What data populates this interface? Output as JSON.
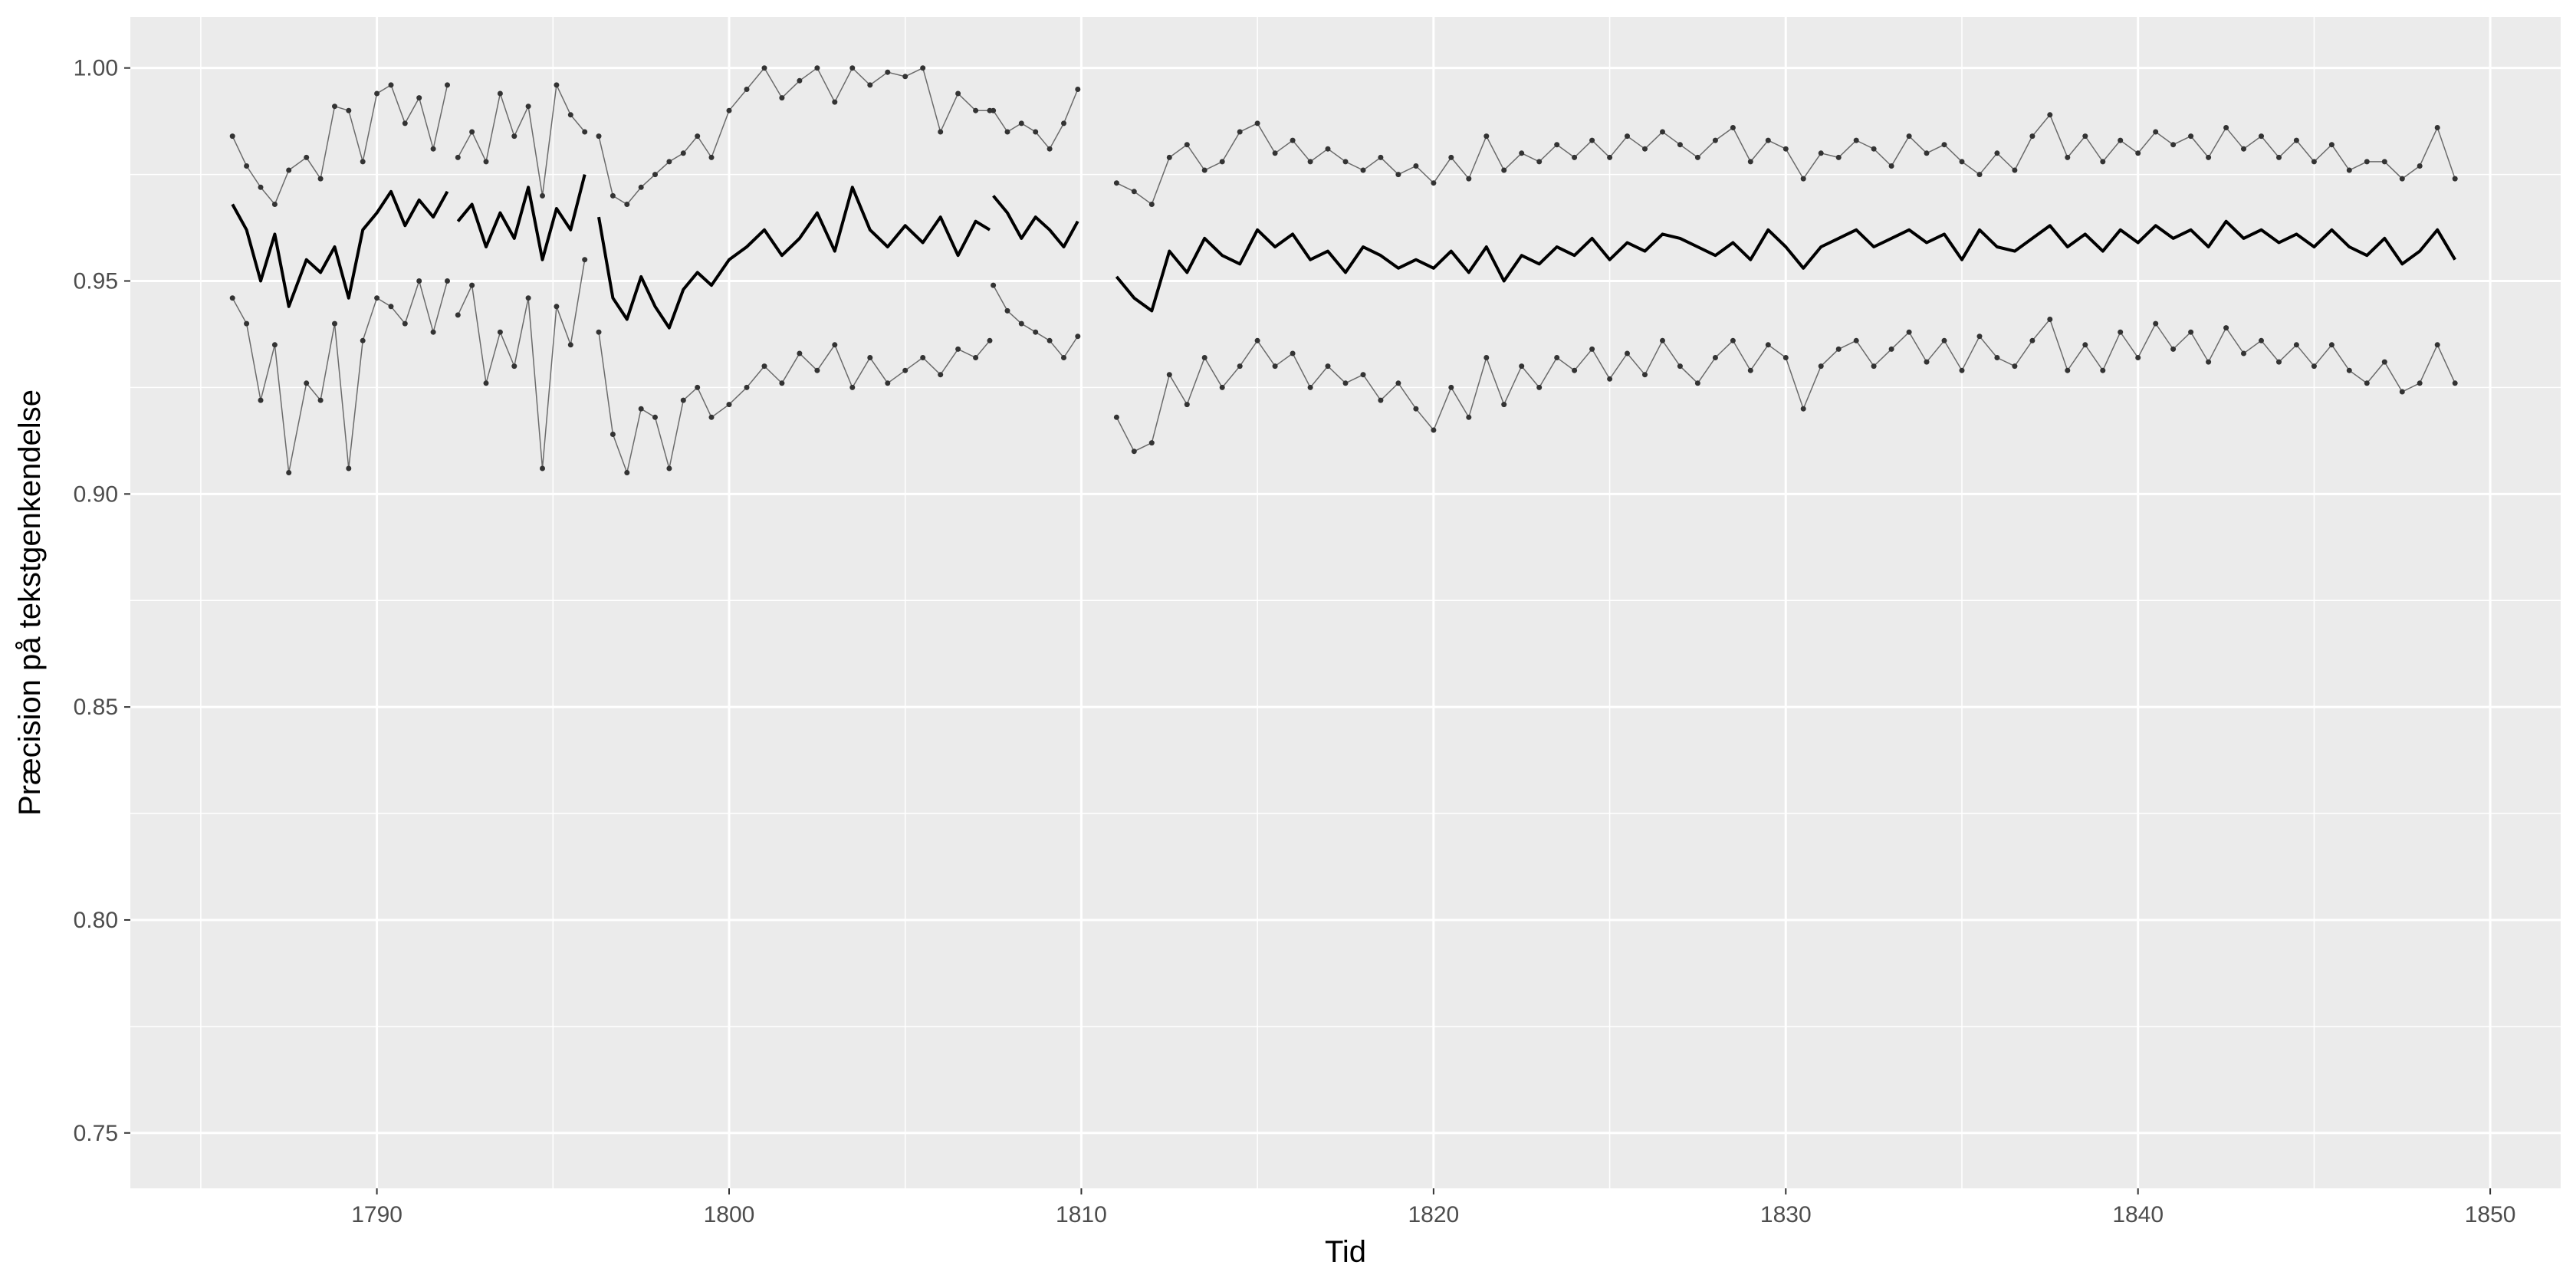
{
  "chart_data": {
    "type": "line",
    "title": "",
    "xlabel": "Tid",
    "ylabel": "Præcision på tekstgenkendelse",
    "xlim": [
      1783,
      1852
    ],
    "ylim": [
      0.737,
      1.012
    ],
    "x_ticks": [
      1790,
      1800,
      1810,
      1820,
      1830,
      1840,
      1850
    ],
    "y_ticks": [
      0.75,
      0.8,
      0.85,
      0.9,
      0.95,
      1.0
    ],
    "x_tick_labels": [
      "1790",
      "1800",
      "1810",
      "1820",
      "1830",
      "1840",
      "1850"
    ],
    "y_tick_labels": [
      "0.75",
      "0.80",
      "0.85",
      "0.90",
      "0.95",
      "1.00"
    ],
    "grid": true,
    "panel_background": "#ebebeb",
    "series": [
      {
        "role": "mean",
        "style": "line",
        "color": "#000000",
        "segments": [
          {
            "x": [
              1785.9,
              1786.3,
              1786.7,
              1787.1,
              1787.5,
              1788.0,
              1788.4,
              1788.8,
              1789.2,
              1789.6,
              1790.0,
              1790.4,
              1790.8,
              1791.2,
              1791.6,
              1792.0
            ],
            "y": [
              0.968,
              0.962,
              0.95,
              0.961,
              0.944,
              0.955,
              0.952,
              0.958,
              0.946,
              0.962,
              0.966,
              0.971,
              0.963,
              0.969,
              0.965,
              0.971
            ]
          },
          {
            "x": [
              1792.3,
              1792.7,
              1793.1,
              1793.5,
              1793.9,
              1794.3,
              1794.7,
              1795.1,
              1795.5,
              1795.9
            ],
            "y": [
              0.964,
              0.968,
              0.958,
              0.966,
              0.96,
              0.972,
              0.955,
              0.967,
              0.962,
              0.975
            ]
          },
          {
            "x": [
              1796.3,
              1796.7,
              1797.1,
              1797.5,
              1797.9,
              1798.3,
              1798.7,
              1799.1,
              1799.5,
              1800.0,
              1800.5,
              1801.0,
              1801.5,
              1802.0,
              1802.5,
              1803.0,
              1803.5,
              1804.0,
              1804.5,
              1805.0,
              1805.5,
              1806.0,
              1806.5,
              1807.0,
              1807.4
            ],
            "y": [
              0.965,
              0.946,
              0.941,
              0.951,
              0.944,
              0.939,
              0.948,
              0.952,
              0.949,
              0.955,
              0.958,
              0.962,
              0.956,
              0.96,
              0.966,
              0.957,
              0.972,
              0.962,
              0.958,
              0.963,
              0.959,
              0.965,
              0.956,
              0.964,
              0.962
            ]
          },
          {
            "x": [
              1807.5,
              1807.9,
              1808.3,
              1808.7,
              1809.1,
              1809.5,
              1809.9
            ],
            "y": [
              0.97,
              0.966,
              0.96,
              0.965,
              0.962,
              0.958,
              0.964
            ]
          },
          {
            "x": [
              1811.0,
              1811.5,
              1812.0,
              1812.5,
              1813.0,
              1813.5,
              1814.0,
              1814.5,
              1815.0,
              1815.5,
              1816.0,
              1816.5,
              1817.0,
              1817.5,
              1818.0,
              1818.5,
              1819.0,
              1819.5,
              1820.0,
              1820.5,
              1821.0,
              1821.5,
              1822.0,
              1822.5,
              1823.0,
              1823.5,
              1824.0,
              1824.5,
              1825.0,
              1825.5,
              1826.0,
              1826.5,
              1827.0,
              1827.5,
              1828.0,
              1828.5,
              1829.0,
              1829.5,
              1830.0,
              1830.5,
              1831.0,
              1831.5,
              1832.0,
              1832.5,
              1833.0,
              1833.5,
              1834.0,
              1834.5,
              1835.0,
              1835.5,
              1836.0,
              1836.5,
              1837.0,
              1837.5,
              1838.0,
              1838.5,
              1839.0,
              1839.5,
              1840.0,
              1840.5,
              1841.0,
              1841.5,
              1842.0,
              1842.5,
              1843.0,
              1843.5,
              1844.0,
              1844.5,
              1845.0,
              1845.5,
              1846.0,
              1846.5,
              1847.0,
              1847.5,
              1848.0,
              1848.5,
              1849.0
            ],
            "y": [
              0.951,
              0.946,
              0.943,
              0.957,
              0.952,
              0.96,
              0.956,
              0.954,
              0.962,
              0.958,
              0.961,
              0.955,
              0.957,
              0.952,
              0.958,
              0.956,
              0.953,
              0.955,
              0.953,
              0.957,
              0.952,
              0.958,
              0.95,
              0.956,
              0.954,
              0.958,
              0.956,
              0.96,
              0.955,
              0.959,
              0.957,
              0.961,
              0.96,
              0.958,
              0.956,
              0.959,
              0.955,
              0.962,
              0.958,
              0.953,
              0.958,
              0.96,
              0.962,
              0.958,
              0.96,
              0.962,
              0.959,
              0.961,
              0.955,
              0.962,
              0.958,
              0.957,
              0.96,
              0.963,
              0.958,
              0.961,
              0.957,
              0.962,
              0.959,
              0.963,
              0.96,
              0.962,
              0.958,
              0.964,
              0.96,
              0.962,
              0.959,
              0.961,
              0.958,
              0.962,
              0.958,
              0.956,
              0.96,
              0.954,
              0.957,
              0.962,
              0.955
            ]
          }
        ]
      },
      {
        "role": "upper",
        "style": "line+points",
        "color": "#555555",
        "segments": [
          {
            "x": [
              1785.9,
              1786.3,
              1786.7,
              1787.1,
              1787.5,
              1788.0,
              1788.4,
              1788.8,
              1789.2,
              1789.6,
              1790.0,
              1790.4,
              1790.8,
              1791.2,
              1791.6,
              1792.0
            ],
            "y": [
              0.984,
              0.977,
              0.972,
              0.968,
              0.976,
              0.979,
              0.974,
              0.991,
              0.99,
              0.978,
              0.994,
              0.996,
              0.987,
              0.993,
              0.981,
              0.996
            ]
          },
          {
            "x": [
              1792.3,
              1792.7,
              1793.1,
              1793.5,
              1793.9,
              1794.3,
              1794.7,
              1795.1,
              1795.5,
              1795.9
            ],
            "y": [
              0.979,
              0.985,
              0.978,
              0.994,
              0.984,
              0.991,
              0.97,
              0.996,
              0.989,
              0.985
            ]
          },
          {
            "x": [
              1796.3,
              1796.7,
              1797.1,
              1797.5,
              1797.9,
              1798.3,
              1798.7,
              1799.1,
              1799.5,
              1800.0,
              1800.5,
              1801.0,
              1801.5,
              1802.0,
              1802.5,
              1803.0,
              1803.5,
              1804.0,
              1804.5,
              1805.0,
              1805.5,
              1806.0,
              1806.5,
              1807.0,
              1807.4
            ],
            "y": [
              0.984,
              0.97,
              0.968,
              0.972,
              0.975,
              0.978,
              0.98,
              0.984,
              0.979,
              0.99,
              0.995,
              1.0,
              0.993,
              0.997,
              1.0,
              0.992,
              1.0,
              0.996,
              0.999,
              0.998,
              1.0,
              0.985,
              0.994,
              0.99,
              0.99
            ]
          },
          {
            "x": [
              1807.5,
              1807.9,
              1808.3,
              1808.7,
              1809.1,
              1809.5,
              1809.9
            ],
            "y": [
              0.99,
              0.985,
              0.987,
              0.985,
              0.981,
              0.987,
              0.995
            ]
          },
          {
            "x": [
              1811.0,
              1811.5,
              1812.0,
              1812.5,
              1813.0,
              1813.5,
              1814.0,
              1814.5,
              1815.0,
              1815.5,
              1816.0,
              1816.5,
              1817.0,
              1817.5,
              1818.0,
              1818.5,
              1819.0,
              1819.5,
              1820.0,
              1820.5,
              1821.0,
              1821.5,
              1822.0,
              1822.5,
              1823.0,
              1823.5,
              1824.0,
              1824.5,
              1825.0,
              1825.5,
              1826.0,
              1826.5,
              1827.0,
              1827.5,
              1828.0,
              1828.5,
              1829.0,
              1829.5,
              1830.0,
              1830.5,
              1831.0,
              1831.5,
              1832.0,
              1832.5,
              1833.0,
              1833.5,
              1834.0,
              1834.5,
              1835.0,
              1835.5,
              1836.0,
              1836.5,
              1837.0,
              1837.5,
              1838.0,
              1838.5,
              1839.0,
              1839.5,
              1840.0,
              1840.5,
              1841.0,
              1841.5,
              1842.0,
              1842.5,
              1843.0,
              1843.5,
              1844.0,
              1844.5,
              1845.0,
              1845.5,
              1846.0,
              1846.5,
              1847.0,
              1847.5,
              1848.0,
              1848.5,
              1849.0
            ],
            "y": [
              0.973,
              0.971,
              0.968,
              0.979,
              0.982,
              0.976,
              0.978,
              0.985,
              0.987,
              0.98,
              0.983,
              0.978,
              0.981,
              0.978,
              0.976,
              0.979,
              0.975,
              0.977,
              0.973,
              0.979,
              0.974,
              0.984,
              0.976,
              0.98,
              0.978,
              0.982,
              0.979,
              0.983,
              0.979,
              0.984,
              0.981,
              0.985,
              0.982,
              0.979,
              0.983,
              0.986,
              0.978,
              0.983,
              0.981,
              0.974,
              0.98,
              0.979,
              0.983,
              0.981,
              0.977,
              0.984,
              0.98,
              0.982,
              0.978,
              0.975,
              0.98,
              0.976,
              0.984,
              0.989,
              0.979,
              0.984,
              0.978,
              0.983,
              0.98,
              0.985,
              0.982,
              0.984,
              0.979,
              0.986,
              0.981,
              0.984,
              0.979,
              0.983,
              0.978,
              0.982,
              0.976,
              0.978,
              0.978,
              0.974,
              0.977,
              0.986,
              0.974
            ]
          }
        ]
      },
      {
        "role": "lower",
        "style": "line+points",
        "color": "#555555",
        "segments": [
          {
            "x": [
              1785.9,
              1786.3,
              1786.7,
              1787.1,
              1787.5,
              1788.0,
              1788.4,
              1788.8,
              1789.2,
              1789.6,
              1790.0,
              1790.4,
              1790.8,
              1791.2,
              1791.6,
              1792.0
            ],
            "y": [
              0.946,
              0.94,
              0.922,
              0.935,
              0.905,
              0.926,
              0.922,
              0.94,
              0.906,
              0.936,
              0.946,
              0.944,
              0.94,
              0.95,
              0.938,
              0.95
            ]
          },
          {
            "x": [
              1792.3,
              1792.7,
              1793.1,
              1793.5,
              1793.9,
              1794.3,
              1794.7,
              1795.1,
              1795.5,
              1795.9
            ],
            "y": [
              0.942,
              0.949,
              0.926,
              0.938,
              0.93,
              0.946,
              0.906,
              0.944,
              0.935,
              0.955
            ]
          },
          {
            "x": [
              1796.3,
              1796.7,
              1797.1,
              1797.5,
              1797.9,
              1798.3,
              1798.7,
              1799.1,
              1799.5,
              1800.0,
              1800.5,
              1801.0,
              1801.5,
              1802.0,
              1802.5,
              1803.0,
              1803.5,
              1804.0,
              1804.5,
              1805.0,
              1805.5,
              1806.0,
              1806.5,
              1807.0,
              1807.4
            ],
            "y": [
              0.938,
              0.914,
              0.905,
              0.92,
              0.918,
              0.906,
              0.922,
              0.925,
              0.918,
              0.921,
              0.925,
              0.93,
              0.926,
              0.933,
              0.929,
              0.935,
              0.925,
              0.932,
              0.926,
              0.929,
              0.932,
              0.928,
              0.934,
              0.932,
              0.936
            ]
          },
          {
            "x": [
              1807.5,
              1807.9,
              1808.3,
              1808.7,
              1809.1,
              1809.5,
              1809.9
            ],
            "y": [
              0.949,
              0.943,
              0.94,
              0.938,
              0.936,
              0.932,
              0.937
            ]
          },
          {
            "x": [
              1811.0,
              1811.5,
              1812.0,
              1812.5,
              1813.0,
              1813.5,
              1814.0,
              1814.5,
              1815.0,
              1815.5,
              1816.0,
              1816.5,
              1817.0,
              1817.5,
              1818.0,
              1818.5,
              1819.0,
              1819.5,
              1820.0,
              1820.5,
              1821.0,
              1821.5,
              1822.0,
              1822.5,
              1823.0,
              1823.5,
              1824.0,
              1824.5,
              1825.0,
              1825.5,
              1826.0,
              1826.5,
              1827.0,
              1827.5,
              1828.0,
              1828.5,
              1829.0,
              1829.5,
              1830.0,
              1830.5,
              1831.0,
              1831.5,
              1832.0,
              1832.5,
              1833.0,
              1833.5,
              1834.0,
              1834.5,
              1835.0,
              1835.5,
              1836.0,
              1836.5,
              1837.0,
              1837.5,
              1838.0,
              1838.5,
              1839.0,
              1839.5,
              1840.0,
              1840.5,
              1841.0,
              1841.5,
              1842.0,
              1842.5,
              1843.0,
              1843.5,
              1844.0,
              1844.5,
              1845.0,
              1845.5,
              1846.0,
              1846.5,
              1847.0,
              1847.5,
              1848.0,
              1848.5,
              1849.0
            ],
            "y": [
              0.918,
              0.91,
              0.912,
              0.928,
              0.921,
              0.932,
              0.925,
              0.93,
              0.936,
              0.93,
              0.933,
              0.925,
              0.93,
              0.926,
              0.928,
              0.922,
              0.926,
              0.92,
              0.915,
              0.925,
              0.918,
              0.932,
              0.921,
              0.93,
              0.925,
              0.932,
              0.929,
              0.934,
              0.927,
              0.933,
              0.928,
              0.936,
              0.93,
              0.926,
              0.932,
              0.936,
              0.929,
              0.935,
              0.932,
              0.92,
              0.93,
              0.934,
              0.936,
              0.93,
              0.934,
              0.938,
              0.931,
              0.936,
              0.929,
              0.937,
              0.932,
              0.93,
              0.936,
              0.941,
              0.929,
              0.935,
              0.929,
              0.938,
              0.932,
              0.94,
              0.934,
              0.938,
              0.931,
              0.939,
              0.933,
              0.936,
              0.931,
              0.935,
              0.93,
              0.935,
              0.929,
              0.926,
              0.931,
              0.924,
              0.926,
              0.935,
              0.926
            ]
          }
        ]
      }
    ]
  }
}
